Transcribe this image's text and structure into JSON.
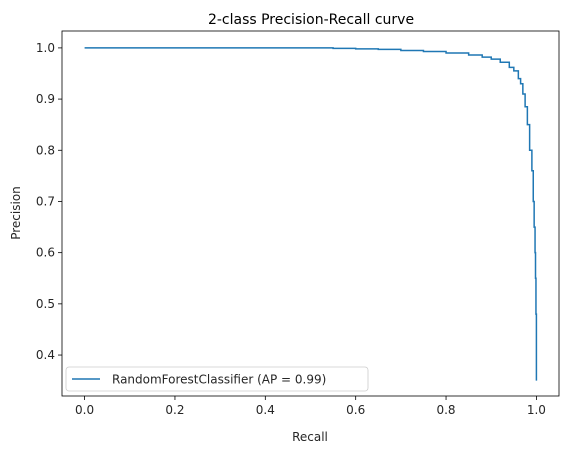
{
  "chart_data": {
    "type": "line",
    "title": "2-class Precision-Recall curve",
    "xlabel": "Recall",
    "ylabel": "Precision",
    "xlim": [
      -0.05,
      1.05
    ],
    "ylim": [
      0.32,
      1.033
    ],
    "xticks": [
      0.0,
      0.2,
      0.4,
      0.6,
      0.8,
      1.0
    ],
    "xtick_labels": [
      "0.0",
      "0.2",
      "0.4",
      "0.6",
      "0.8",
      "1.0"
    ],
    "yticks": [
      0.4,
      0.5,
      0.6,
      0.7,
      0.8,
      0.9,
      1.0
    ],
    "ytick_labels": [
      "0.4",
      "0.5",
      "0.6",
      "0.7",
      "0.8",
      "0.9",
      "1.0"
    ],
    "grid": false,
    "legend_position": "lower-left",
    "series": [
      {
        "name": "RandomForestClassifier (AP = 0.99)",
        "color": "#1f77b4",
        "x": [
          0.0,
          0.1,
          0.2,
          0.3,
          0.4,
          0.5,
          0.55,
          0.6,
          0.65,
          0.7,
          0.75,
          0.8,
          0.85,
          0.88,
          0.9,
          0.92,
          0.94,
          0.95,
          0.96,
          0.965,
          0.97,
          0.975,
          0.98,
          0.985,
          0.99,
          0.993,
          0.995,
          0.997,
          0.998,
          0.999,
          1.0,
          1.0
        ],
        "y": [
          1.0,
          1.0,
          1.0,
          1.0,
          1.0,
          1.0,
          0.999,
          0.998,
          0.997,
          0.995,
          0.993,
          0.99,
          0.986,
          0.982,
          0.978,
          0.972,
          0.962,
          0.955,
          0.94,
          0.93,
          0.91,
          0.885,
          0.85,
          0.8,
          0.76,
          0.7,
          0.65,
          0.6,
          0.55,
          0.48,
          0.4,
          0.35
        ]
      }
    ]
  }
}
